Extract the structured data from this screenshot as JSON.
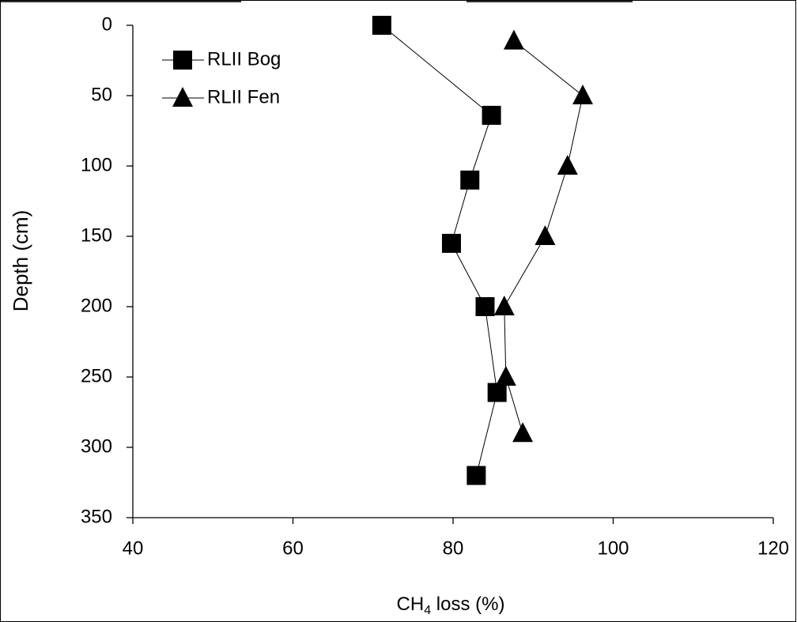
{
  "chart_data": {
    "type": "scatter",
    "x_label": [
      "CH",
      "4",
      " loss (%)"
    ],
    "y_label": "Depth (cm)",
    "xlim": [
      40,
      120
    ],
    "xticks": [
      40,
      60,
      80,
      100,
      120
    ],
    "ylim": [
      350,
      0
    ],
    "yticks": [
      0,
      50,
      100,
      150,
      200,
      250,
      300,
      350
    ],
    "grid": false,
    "legend": "upper left",
    "series": [
      {
        "name": "RLII Bog",
        "color": "#000000",
        "marker": "square",
        "x": [
          71.1,
          84.8,
          82.1,
          79.8,
          84.0,
          85.5,
          82.9
        ],
        "values": [
          0,
          64,
          110,
          155,
          200,
          261,
          320
        ]
      },
      {
        "name": "RLII Fen",
        "color": "#000000",
        "marker": "triangle",
        "x": [
          87.6,
          96.2,
          94.3,
          91.5,
          86.4,
          86.6,
          88.7
        ],
        "values": [
          11,
          50,
          100,
          150,
          200,
          250,
          290
        ]
      }
    ]
  }
}
